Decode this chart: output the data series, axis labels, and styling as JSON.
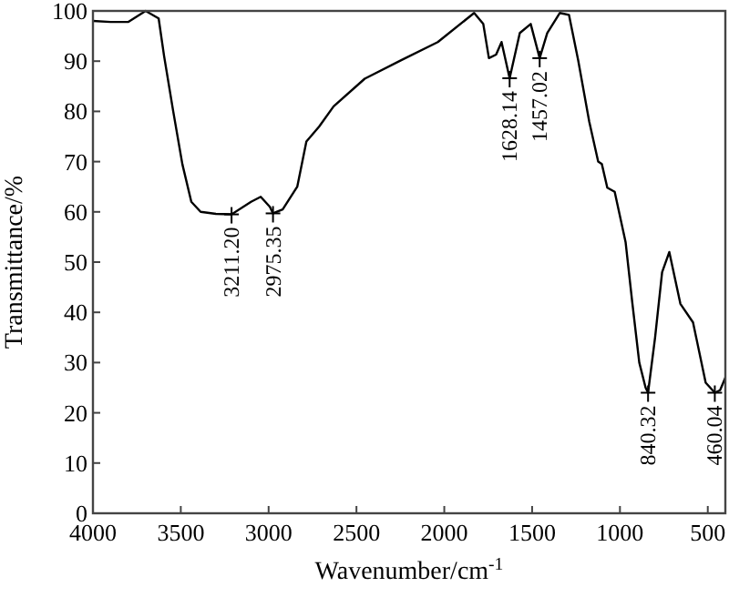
{
  "chart_data": {
    "type": "line",
    "xlabel": "Wavenumber/cm$^{-1}$",
    "ylabel": "Transmittance/%",
    "x": [
      4000,
      3900,
      3800,
      3700,
      3626,
      3595,
      3543,
      3491,
      3440,
      3387,
      3300,
      3211,
      3100,
      3045,
      2993,
      2975,
      2920,
      2837,
      2785,
      2712,
      2630,
      2453,
      2245,
      2037,
      1830,
      1778,
      1746,
      1705,
      1674,
      1628,
      1570,
      1508,
      1457,
      1414,
      1342,
      1290,
      1238,
      1175,
      1124,
      1103,
      1072,
      1030,
      968,
      930,
      890,
      854,
      840,
      800,
      760,
      719,
      656,
      584,
      512,
      460,
      430,
      400
    ],
    "series": [
      {
        "color": "#000000",
        "values": [
          98,
          97.8,
          97.8,
          100,
          98.5,
          91,
          80,
          69.5,
          62,
          60,
          59.6,
          59.5,
          62,
          63,
          61,
          59.7,
          60.5,
          65,
          74,
          77,
          81,
          86.5,
          90.2,
          93.8,
          99.6,
          97.4,
          90.6,
          91.3,
          93.8,
          86.6,
          95.6,
          97.4,
          90.6,
          95.6,
          99.6,
          99.2,
          90.2,
          78,
          70,
          69.5,
          64.8,
          64,
          54,
          42,
          30,
          25,
          24,
          35,
          48,
          52,
          41.7,
          38,
          26,
          24,
          24.5,
          27
        ]
      }
    ],
    "xlim": [
      4000,
      400
    ],
    "ylim": [
      0,
      100
    ],
    "xticks": [
      4000,
      3500,
      3000,
      2500,
      2000,
      1500,
      1000,
      500
    ],
    "yticks": [
      0,
      10,
      20,
      30,
      40,
      50,
      60,
      70,
      80,
      90,
      100
    ],
    "grid": false,
    "marker": "none",
    "line_style": "solid",
    "annotations": [
      {
        "text": "3211.20",
        "x": 3211,
        "y": 59.5
      },
      {
        "text": "2975.35",
        "x": 2975,
        "y": 59.7
      },
      {
        "text": "1628.14",
        "x": 1628,
        "y": 86.6
      },
      {
        "text": "1457.02",
        "x": 1457,
        "y": 90.6
      },
      {
        "text": "840.32",
        "x": 840,
        "y": 24
      },
      {
        "text": "460.04",
        "x": 460,
        "y": 24
      }
    ]
  }
}
